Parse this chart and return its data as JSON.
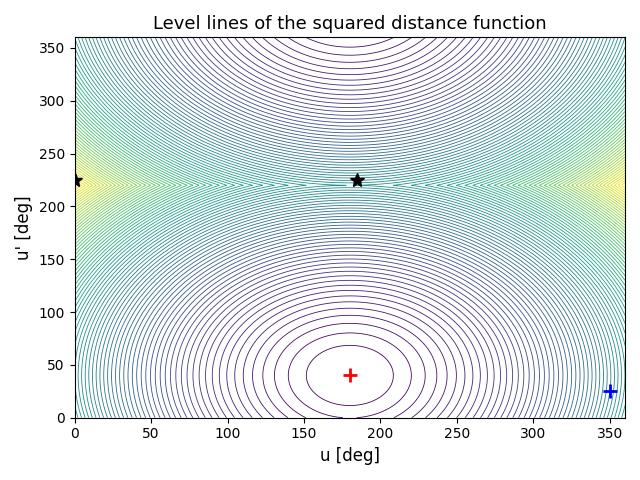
{
  "title": "Level lines of the squared distance function",
  "xlabel": "u [deg]",
  "ylabel": "u' [deg]",
  "xlim": [
    0,
    360
  ],
  "ylim": [
    0,
    360
  ],
  "xticks": [
    0,
    50,
    100,
    150,
    200,
    250,
    300,
    350
  ],
  "yticks": [
    0,
    50,
    100,
    150,
    200,
    250,
    300,
    350
  ],
  "ref_point": [
    180,
    40
  ],
  "ref_color": "red",
  "blue_point": [
    350,
    25
  ],
  "blue_color": "blue",
  "star1": [
    0,
    225
  ],
  "star2": [
    185,
    225
  ],
  "n_levels": 80,
  "colormap": "viridis",
  "figsize": [
    6.4,
    4.8
  ],
  "dpi": 100,
  "background_color": "white"
}
